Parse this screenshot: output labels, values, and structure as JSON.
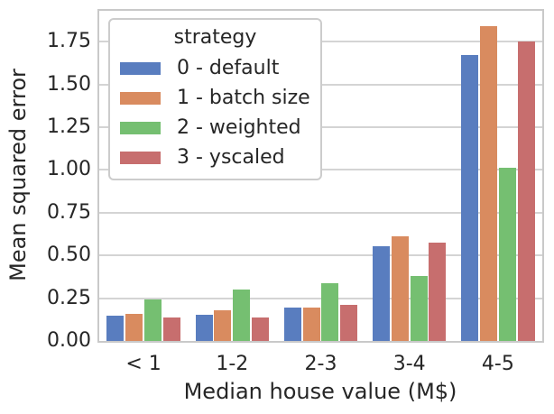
{
  "figure": {
    "background": "#ffffff",
    "text_color": "#262626",
    "grid_color": "#d4d4d4",
    "spine_color": "#c9c9c9"
  },
  "chart_data": {
    "type": "bar",
    "title": "",
    "xlabel": "Median house value (M$)",
    "ylabel": "Mean squared error",
    "categories": [
      "< 1",
      "1-2",
      "2-3",
      "3-4",
      "4-5"
    ],
    "series": [
      {
        "name": "0 - default",
        "color": "#597DBF",
        "values": [
          0.15,
          0.155,
          0.195,
          0.555,
          1.67
        ]
      },
      {
        "name": "1 - batch size",
        "color": "#D98B5F",
        "values": [
          0.16,
          0.18,
          0.195,
          0.61,
          1.84
        ]
      },
      {
        "name": "2 - weighted",
        "color": "#75BF71",
        "values": [
          0.245,
          0.3,
          0.335,
          0.38,
          1.01
        ]
      },
      {
        "name": "3 - yscaled",
        "color": "#C76E6E",
        "values": [
          0.135,
          0.135,
          0.21,
          0.575,
          1.75
        ]
      }
    ],
    "legend_title": "strategy",
    "legend_position": "upper left",
    "ylim": [
      0,
      1.93
    ],
    "ytick_labels": [
      "0.00",
      "0.25",
      "0.50",
      "0.75",
      "1.00",
      "1.25",
      "1.50",
      "1.75"
    ],
    "grid": "horizontal"
  }
}
